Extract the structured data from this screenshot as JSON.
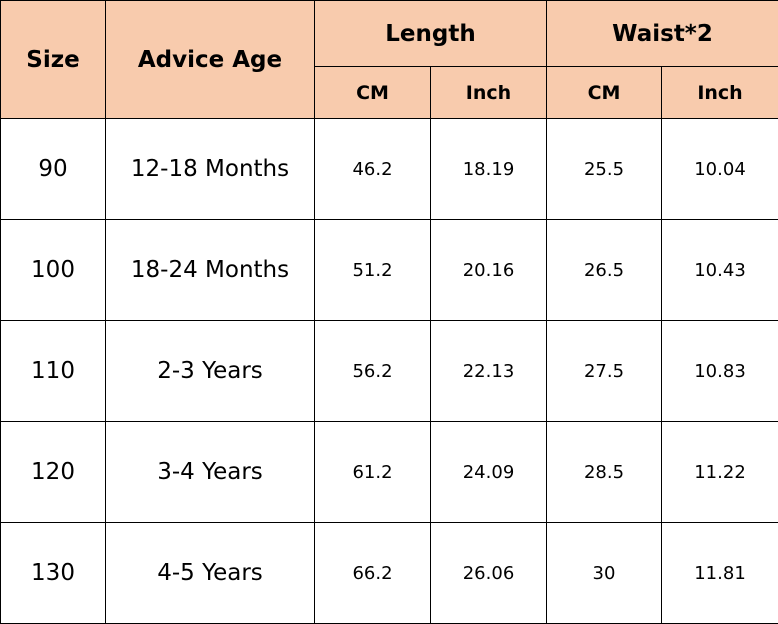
{
  "table": {
    "headers": [
      "Size",
      "Advice Age",
      "Length",
      "Waist*2"
    ],
    "subheaders": [
      "CM",
      "Inch",
      "CM",
      "Inch"
    ],
    "rows": [
      [
        "90",
        "12-18 Months",
        "46.2",
        "18.19",
        "25.5",
        "10.04"
      ],
      [
        "100",
        "18-24 Months",
        "51.2",
        "20.16",
        "26.5",
        "10.43"
      ],
      [
        "110",
        "2-3 Years",
        "56.2",
        "22.13",
        "27.5",
        "10.83"
      ],
      [
        "120",
        "3-4 Years",
        "61.2",
        "24.09",
        "28.5",
        "11.22"
      ],
      [
        "130",
        "4-5 Years",
        "66.2",
        "26.06",
        "30",
        "11.81"
      ]
    ]
  }
}
